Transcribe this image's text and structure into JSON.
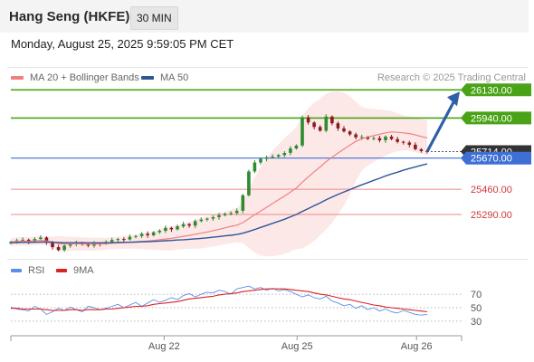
{
  "header": {
    "title": "Hang Seng (HKFE)",
    "interval": "30 MIN",
    "timestamp": "Monday, August 25, 2025 9:59:05 PM CET",
    "watermark": "Research © 2025 Trading Central"
  },
  "colors": {
    "candle_up": "#2e8b2e",
    "candle_down": "#8b1c1c",
    "ma20": "#f08080",
    "bollinger_fill": "#fde4e4",
    "ma50": "#2f5597",
    "resistance": "#4aa316",
    "pivot": "#3d6fd4",
    "support": "#ee8888",
    "last_price_tag": "#333333",
    "rsi": "#5b8ee6",
    "rsi_ma": "#dd2222",
    "arrow": "#2f5fa8"
  },
  "chart_data": [
    {
      "type": "candlestick",
      "name": "price",
      "ylim": [
        25040,
        26150
      ],
      "x_range": [
        0,
        100
      ],
      "x_ticks": [
        {
          "label": "Aug 22",
          "x": 34
        },
        {
          "label": "Aug 25",
          "x": 63.5
        },
        {
          "label": "Aug 26",
          "x": 90
        }
      ],
      "legend": [
        "MA 20 + Bollinger Bands",
        "MA 50"
      ],
      "levels": [
        {
          "value": 26130.0,
          "label": "26130.00",
          "kind": "resistance"
        },
        {
          "value": 25940.0,
          "label": "25940.00",
          "kind": "resistance"
        },
        {
          "value": 25714.0,
          "label": "25714.00",
          "kind": "last"
        },
        {
          "value": 25670.0,
          "label": "25670.00",
          "kind": "pivot"
        },
        {
          "value": 25460.0,
          "label": "25460.00",
          "kind": "support"
        },
        {
          "value": 25290.0,
          "label": "25290.00",
          "kind": "support"
        }
      ],
      "last_price": 25714.0,
      "close": [
        25105,
        25115,
        25120,
        25108,
        25125,
        25135,
        25100,
        25070,
        25050,
        25080,
        25092,
        25098,
        25088,
        25080,
        25095,
        25092,
        25105,
        25118,
        25125,
        25122,
        25140,
        25145,
        25160,
        25150,
        25170,
        25180,
        25200,
        25190,
        25210,
        25225,
        25215,
        25245,
        25255,
        25262,
        25272,
        25285,
        25295,
        25300,
        25315,
        25420,
        25580,
        25640,
        25665,
        25675,
        25680,
        25690,
        25705,
        25735,
        25755,
        25945,
        25910,
        25880,
        25855,
        25950,
        25905,
        25870,
        25850,
        25830,
        25810,
        25812,
        25800,
        25805,
        25790,
        25815,
        25798,
        25780,
        25775,
        25760,
        25730,
        25718,
        25714
      ],
      "ma20": [
        25105,
        25108,
        25110,
        25109,
        25112,
        25116,
        25112,
        25104,
        25094,
        25092,
        25092,
        25093,
        25092,
        25090,
        25091,
        25091,
        25093,
        25096,
        25099,
        25100,
        25104,
        25106,
        25109,
        25111,
        25115,
        25120,
        25125,
        25129,
        25136,
        25143,
        25149,
        25157,
        25164,
        25172,
        25181,
        25190,
        25200,
        25210,
        25218,
        25235,
        25262,
        25288,
        25313,
        25339,
        25364,
        25389,
        25414,
        25441,
        25468,
        25508,
        25544,
        25578,
        25610,
        25646,
        25676,
        25704,
        25731,
        25757,
        25782,
        25800,
        25812,
        25822,
        25831,
        25840,
        25846,
        25844,
        25840,
        25835,
        25826,
        25816,
        25806
      ],
      "ma50": [
        25100,
        25101,
        25102,
        25102,
        25103,
        25104,
        25104,
        25103,
        25101,
        25100,
        25100,
        25100,
        25100,
        25099,
        25099,
        25099,
        25100,
        25100,
        25101,
        25102,
        25103,
        25104,
        25106,
        25107,
        25109,
        25111,
        25113,
        25115,
        25118,
        25120,
        25123,
        25126,
        25129,
        25133,
        25137,
        25141,
        25146,
        25150,
        25155,
        25164,
        25176,
        25189,
        25203,
        25216,
        25230,
        25244,
        25258,
        25274,
        25290,
        25311,
        25330,
        25349,
        25368,
        25389,
        25407,
        25425,
        25442,
        25458,
        25474,
        25490,
        25505,
        25520,
        25534,
        25550,
        25563,
        25575,
        25588,
        25600,
        25611,
        25621,
        25631
      ]
    },
    {
      "type": "line",
      "name": "rsi",
      "ylim": [
        15,
        85
      ],
      "reference_lines": [
        70,
        50,
        30
      ],
      "tick_labels": [
        "70",
        "50",
        "30"
      ],
      "series": [
        {
          "name": "RSI",
          "values": [
            51,
            48,
            47,
            45,
            52,
            48,
            40,
            44,
            49,
            46,
            51,
            47,
            44,
            52,
            50,
            47,
            49,
            52,
            55,
            50,
            54,
            58,
            52,
            57,
            62,
            58,
            61,
            65,
            62,
            68,
            71,
            66,
            70,
            73,
            72,
            76,
            74,
            70,
            78,
            80,
            82,
            78,
            80,
            76,
            79,
            75,
            77,
            74,
            70,
            66,
            69,
            65,
            63,
            67,
            60,
            57,
            53,
            55,
            49,
            53,
            47,
            50,
            45,
            48,
            44,
            42,
            46,
            43,
            40,
            39,
            40
          ]
        },
        {
          "name": "9MA",
          "values": [
            49,
            49,
            48,
            48,
            48,
            48,
            47,
            46,
            46,
            46,
            47,
            47,
            46,
            47,
            47,
            47,
            48,
            48,
            49,
            50,
            51,
            52,
            52,
            53,
            55,
            56,
            57,
            58,
            59,
            61,
            63,
            64,
            65,
            66,
            67,
            69,
            70,
            71,
            72,
            74,
            75,
            76,
            77,
            78,
            78,
            78,
            78,
            77,
            76,
            75,
            74,
            72,
            70,
            69,
            67,
            65,
            63,
            62,
            60,
            58,
            56,
            54,
            53,
            51,
            50,
            49,
            48,
            47,
            46,
            45,
            44
          ]
        }
      ]
    }
  ]
}
